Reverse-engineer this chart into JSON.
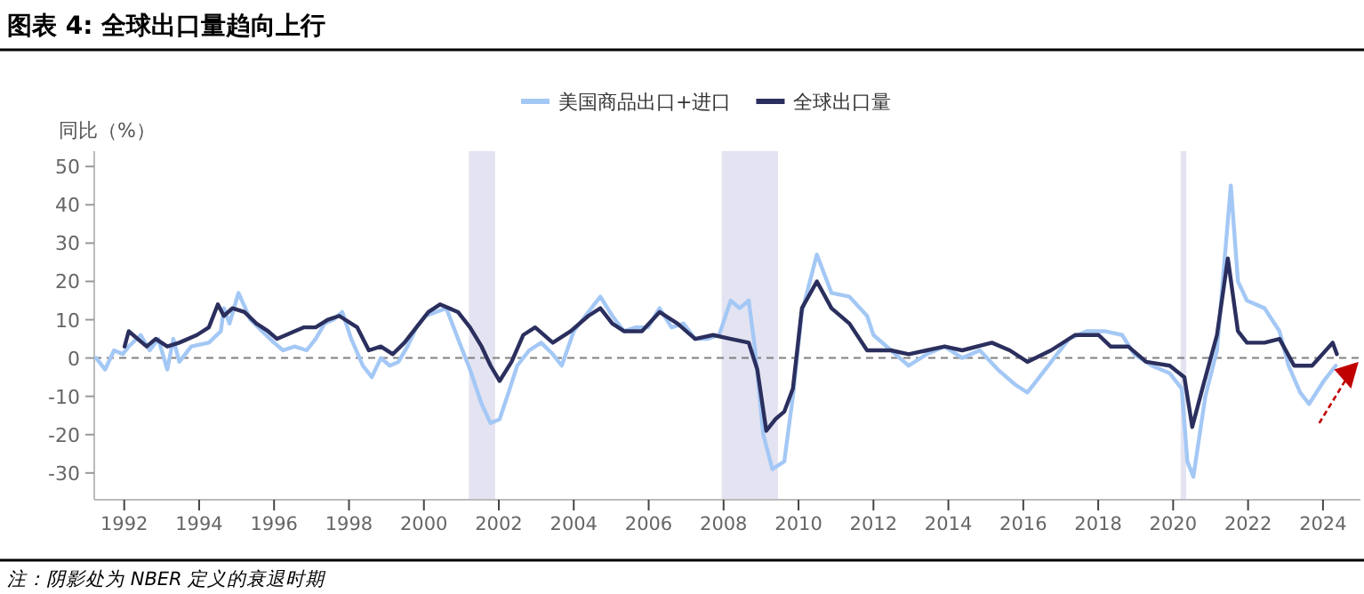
{
  "chart_data": {
    "type": "line",
    "title": "图表 4: 全球出口量趋向上行",
    "ylabel": "同比（%）",
    "annotations": [
      "注：阴影处为 NBER 定义的衰退时期"
    ],
    "legend": "top",
    "xlim": [
      1991.2,
      2025.0
    ],
    "ylim": [
      -37,
      54
    ],
    "xticks": [
      1992,
      1994,
      1996,
      1998,
      2000,
      2002,
      2004,
      2006,
      2008,
      2010,
      2012,
      2014,
      2016,
      2018,
      2020,
      2022,
      2024
    ],
    "yticks": [
      -30,
      -20,
      -10,
      0,
      10,
      20,
      30,
      40,
      50
    ],
    "ref_lines": [
      {
        "axis": "y",
        "value": 0,
        "color": "#808080",
        "line_style": "dashed"
      }
    ],
    "bands": [
      {
        "axis": "x",
        "from": 2001.2,
        "to": 2001.9,
        "color": "#e3e3f1"
      },
      {
        "axis": "x",
        "from": 2007.95,
        "to": 2009.45,
        "color": "#e3e3f1"
      },
      {
        "axis": "x",
        "from": 2020.2,
        "to": 2020.35,
        "color": "#e3e3f1"
      }
    ],
    "series": [
      {
        "name": "美国商品出口+进口",
        "color": "#a4c8f5",
        "x": [
          1991.25,
          1991.49,
          1991.73,
          1991.96,
          1992.12,
          1992.44,
          1992.68,
          1992.91,
          1993.15,
          1993.31,
          1993.47,
          1993.79,
          1994.26,
          1994.58,
          1994.66,
          1994.81,
          1995.05,
          1995.37,
          1995.68,
          1996.0,
          1996.24,
          1996.55,
          1996.87,
          1997.11,
          1997.35,
          1997.58,
          1997.82,
          1998.06,
          1998.37,
          1998.61,
          1998.85,
          1999.09,
          1999.32,
          1999.56,
          1999.8,
          2000.04,
          2000.6,
          2000.91,
          2001.23,
          2001.54,
          2001.78,
          2002.02,
          2002.26,
          2002.49,
          2002.81,
          2003.13,
          2003.44,
          2003.68,
          2004.0,
          2004.31,
          2004.71,
          2005.03,
          2005.34,
          2005.66,
          2005.98,
          2006.29,
          2006.61,
          2006.93,
          2007.24,
          2007.56,
          2007.88,
          2008.19,
          2008.43,
          2008.67,
          2008.83,
          2009.06,
          2009.3,
          2009.62,
          2009.85,
          2010.09,
          2010.49,
          2010.88,
          2011.36,
          2011.83,
          2012.0,
          2012.47,
          2012.94,
          2013.42,
          2013.9,
          2014.37,
          2014.84,
          2015.32,
          2015.79,
          2016.11,
          2016.43,
          2016.9,
          2017.22,
          2017.69,
          2018.17,
          2018.64,
          2018.96,
          2019.43,
          2019.91,
          2020.23,
          2020.38,
          2020.54,
          2020.86,
          2021.17,
          2021.41,
          2021.54,
          2021.73,
          2021.97,
          2022.44,
          2022.84,
          2023.08,
          2023.39,
          2023.63,
          2024.02,
          2024.34
        ],
        "values": [
          0,
          -3,
          2,
          1,
          3,
          6,
          2,
          5,
          -3,
          5,
          -1,
          3,
          4,
          7,
          13,
          9,
          17,
          10,
          7,
          4,
          2,
          3,
          2,
          5,
          9,
          10,
          12,
          5,
          -2,
          -5,
          0,
          -2,
          -1,
          3,
          8,
          11,
          13,
          5,
          -3,
          -12,
          -17,
          -16,
          -9,
          -2,
          2,
          4,
          1,
          -2,
          7,
          11,
          16,
          11,
          7,
          8,
          8,
          13,
          8,
          9,
          5,
          5,
          6,
          15,
          13,
          15,
          3,
          -20,
          -29,
          -27,
          -10,
          12,
          27,
          17,
          16,
          11,
          6,
          2,
          -2,
          1,
          3,
          0,
          2,
          -3,
          -7,
          -9,
          -5,
          1,
          5,
          7,
          7,
          6,
          1,
          -2,
          -4,
          -8,
          -27,
          -31,
          -10,
          2,
          30,
          45,
          20,
          15,
          13,
          7,
          -2,
          -9,
          -12,
          -6,
          -2
        ]
      },
      {
        "name": "全球出口量",
        "color": "#2b2f5e",
        "x": [
          1992.01,
          1992.12,
          1992.36,
          1992.6,
          1992.84,
          1993.15,
          1993.47,
          1993.94,
          1994.26,
          1994.5,
          1994.66,
          1994.89,
          1995.21,
          1995.53,
          1995.84,
          1996.08,
          1996.32,
          1996.55,
          1996.79,
          1997.11,
          1997.43,
          1997.74,
          1998.06,
          1998.22,
          1998.53,
          1998.85,
          1999.17,
          1999.48,
          1999.8,
          2000.12,
          2000.43,
          2000.91,
          2001.23,
          2001.54,
          2001.78,
          2002.02,
          2002.34,
          2002.65,
          2002.97,
          2003.44,
          2003.92,
          2004.39,
          2004.71,
          2005.03,
          2005.34,
          2005.82,
          2006.29,
          2006.77,
          2007.24,
          2007.72,
          2008.19,
          2008.67,
          2008.9,
          2009.14,
          2009.38,
          2009.62,
          2009.85,
          2010.09,
          2010.49,
          2010.88,
          2011.36,
          2011.83,
          2012.0,
          2012.47,
          2012.94,
          2013.42,
          2013.9,
          2014.37,
          2015.16,
          2015.64,
          2016.11,
          2016.74,
          2017.38,
          2018.01,
          2018.33,
          2018.8,
          2019.28,
          2019.91,
          2020.3,
          2020.51,
          2020.78,
          2021.17,
          2021.46,
          2021.73,
          2021.97,
          2022.44,
          2022.84,
          2023.23,
          2023.71,
          2024.26,
          2024.37
        ],
        "values": [
          3,
          7,
          5,
          3,
          5,
          3,
          4,
          6,
          8,
          14,
          11,
          13,
          12,
          9,
          7,
          5,
          6,
          7,
          8,
          8,
          10,
          11,
          9,
          8,
          2,
          3,
          1,
          4,
          8,
          12,
          14,
          12,
          8,
          3,
          -2,
          -6,
          -1,
          6,
          8,
          4,
          7,
          11,
          13,
          9,
          7,
          7,
          12,
          9,
          5,
          6,
          5,
          4,
          -3,
          -19,
          -16,
          -14,
          -8,
          13,
          20,
          13,
          9,
          2,
          2,
          2,
          1,
          2,
          3,
          2,
          4,
          2,
          -1,
          2,
          6,
          6,
          3,
          3,
          -1,
          -2,
          -5,
          -18,
          -8,
          6,
          26,
          7,
          4,
          4,
          5,
          -2,
          -2,
          4,
          1
        ]
      }
    ]
  }
}
